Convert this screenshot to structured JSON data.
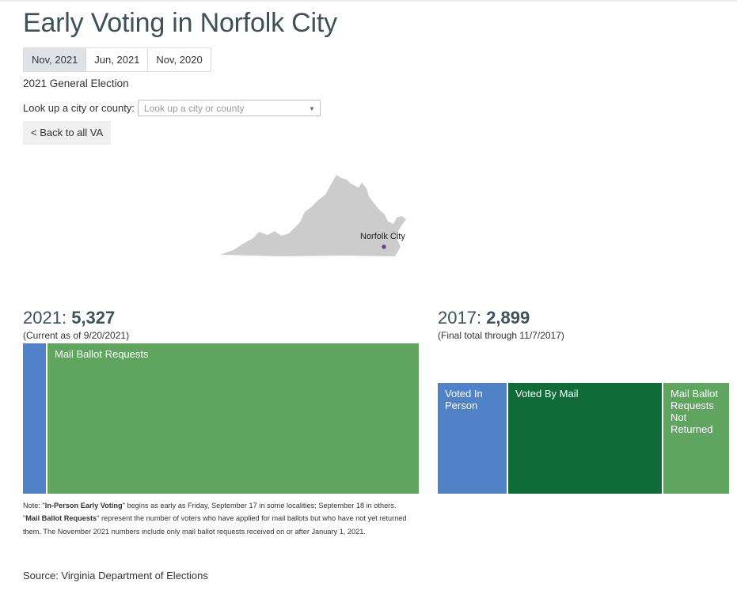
{
  "title": "Early Voting in Norfolk City",
  "tabs": [
    {
      "label": "Nov, 2021",
      "active": true
    },
    {
      "label": "Jun, 2021",
      "active": false
    },
    {
      "label": "Nov, 2020",
      "active": false
    }
  ],
  "subtitle": "2021 General Election",
  "lookup": {
    "label": "Look up a city or county:",
    "placeholder": "Look up a city or county"
  },
  "back_button": "< Back to all VA",
  "map": {
    "label": "Norfolk City",
    "fill_color": "#cccccc",
    "marker_color": "#5b3f8a"
  },
  "colors": {
    "in_person": "#5182c7",
    "mail": "#0f6b38",
    "mail_requests": "#5fa560"
  },
  "chart_data": [
    {
      "type": "treemap",
      "year_label": "2021:",
      "total": "5,327",
      "subtitle": "(Current as of 9/20/2021)",
      "segments": [
        {
          "category": "In-Person Early Voting",
          "label": "",
          "value": 0.058,
          "color_key": "in_person"
        },
        {
          "category": "Mail Ballot Requests",
          "label": "Mail Ballot Requests",
          "value": 0.942,
          "color_key": "mail_requests"
        }
      ]
    },
    {
      "type": "treemap",
      "year_label": "2017:",
      "total": "2,899",
      "subtitle": "(Final total through 11/7/2017)",
      "segments": [
        {
          "category": "Voted In Person",
          "label": "Voted In Person",
          "value": 0.238,
          "color_key": "in_person"
        },
        {
          "category": "Voted By Mail",
          "label": "Voted By Mail",
          "value": 0.532,
          "color_key": "mail"
        },
        {
          "category": "Mail Ballot Requests Not Returned",
          "label": "Mail Ballot Requests Not Returned",
          "value": 0.23,
          "color_key": "mail_requests"
        }
      ]
    }
  ],
  "note": {
    "prefix": "Note: \"",
    "term1": "In-Person Early Voting",
    "text1": "\" begins as early as Friday, September 17 in some localities; September 18 in others. \"",
    "term2": "Mail Ballot Requests",
    "text2": "\" represent the number of voters who have applied for mail ballots but who have not yet returned them. The November 2021 numbers include only mail ballot requests received on or after January 1, 2021."
  },
  "source": "Source: Virginia Department of Elections"
}
